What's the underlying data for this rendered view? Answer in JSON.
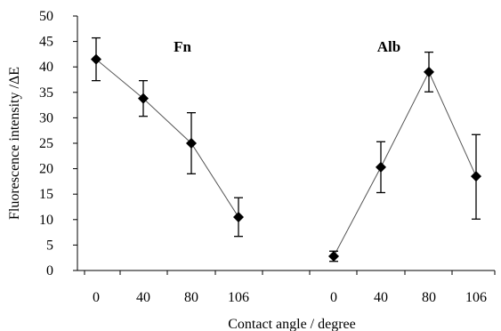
{
  "chart_data": {
    "type": "line",
    "xlabel": "Contact angle / degree",
    "ylabel": "Fluorescence intensity /ΔE",
    "ylim": [
      0,
      50
    ],
    "yticks": [
      0,
      5,
      10,
      15,
      20,
      25,
      30,
      35,
      40,
      45,
      50
    ],
    "grid": false,
    "groups": [
      {
        "name": "Fn",
        "categories": [
          "0",
          "40",
          "80",
          "106"
        ],
        "values": [
          41.5,
          33.8,
          25.0,
          10.5
        ],
        "error_low": [
          37.3,
          30.3,
          19.0,
          6.7
        ],
        "error_high": [
          45.7,
          37.3,
          31.0,
          14.3
        ]
      },
      {
        "name": "Alb",
        "categories": [
          "0",
          "40",
          "80",
          "106"
        ],
        "values": [
          2.8,
          20.3,
          39.0,
          18.5
        ],
        "error_low": [
          1.8,
          15.3,
          35.1,
          10.1
        ],
        "error_high": [
          3.8,
          25.3,
          42.9,
          26.7
        ]
      }
    ]
  }
}
